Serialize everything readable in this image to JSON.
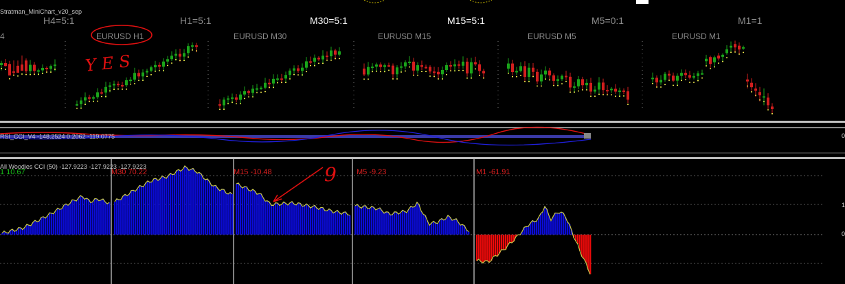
{
  "minichart": {
    "indicator_name": "Stratman_MiniChart_v20_sep",
    "timeframes": [
      {
        "label": "H4=5:1",
        "color": "#8c8c8c"
      },
      {
        "label": "H1=5:1",
        "color": "#8c8c8c"
      },
      {
        "label": "M30=5:1",
        "color": "#ffffff"
      },
      {
        "label": "M15=5:1",
        "color": "#ffffff"
      },
      {
        "label": "M5=0:1",
        "color": "#8c8c8c"
      },
      {
        "label": "M1=1",
        "color": "#8c8c8c"
      }
    ],
    "symbols": [
      "4",
      "EURUSD H1",
      "EURUSD M30",
      "EURUSD M15",
      "EURUSD M5",
      "EURUSD M1"
    ],
    "annotation_text": "YES"
  },
  "rsi_cci": {
    "name": "RSI_CCI_V4 -148.2524 0.2062 -119.0775",
    "scale_right": "0"
  },
  "woodies": {
    "name": "All Woodies CCI (50) -127.9223 -127.9223 -127.9223",
    "scale_right": [
      "1",
      "0"
    ],
    "labels": [
      {
        "text": "1   10.67",
        "color": "#19c419"
      },
      {
        "text": "M30   70.22",
        "color": "#e02020"
      },
      {
        "text": "M15   -10.48",
        "color": "#e02020"
      },
      {
        "text": "M5   -9.23",
        "color": "#e02020"
      },
      {
        "text": "M1   -61.91",
        "color": "#e02020"
      }
    ],
    "handwritten_mark": "9"
  },
  "colors": {
    "bull": "#1aa41a",
    "bear": "#d21e1e",
    "cci_pos": "#0b0bd6",
    "cci_neg": "#ee0a0a",
    "cci_line": "#c8c84a",
    "annotation": "#e01010"
  }
}
